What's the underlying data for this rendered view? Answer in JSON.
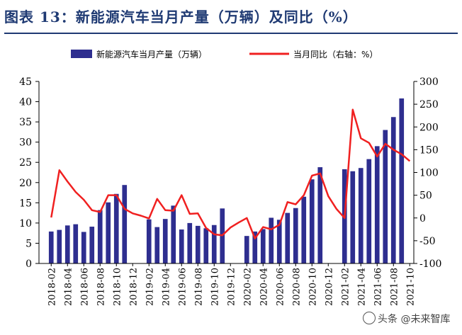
{
  "header": {
    "title": "图表 13：新能源汽车当月产量（万辆）及同比（%）"
  },
  "watermark": {
    "text": "头条 @未来智库"
  },
  "chart_data": {
    "type": "bar+line",
    "title": "新能源汽车当月产量（万辆）及同比（%）",
    "legend": {
      "position": "top",
      "bar_label": "新能源汽车当月产量（万辆）",
      "line_label": "当月同比（右轴：%）"
    },
    "colors": {
      "bar": "#2e2e8f",
      "line": "#f02020",
      "axis": "#000000",
      "title": "#1f3a73"
    },
    "left_axis": {
      "min": 0,
      "max": 45,
      "step": 5,
      "ticks": [
        "0",
        "5",
        "10",
        "15",
        "20",
        "25",
        "30",
        "35",
        "40",
        "45"
      ]
    },
    "right_axis": {
      "min": -100,
      "max": 300,
      "step": 50,
      "ticks": [
        "-100",
        "-50",
        "0",
        "50",
        "100",
        "150",
        "200",
        "250",
        "300"
      ]
    },
    "x_tick_labels": [
      "2018-02",
      "2018-04",
      "2018-06",
      "2018-08",
      "2018-10",
      "2018-12",
      "2019-02",
      "2019-04",
      "2019-06",
      "2019-08",
      "2019-10",
      "2019-12",
      "2020-02",
      "2020-04",
      "2020-06",
      "2020-08",
      "2020-10",
      "2020-12",
      "2021-02",
      "2021-04",
      "2021-06",
      "2021-08",
      "2021-10"
    ],
    "months": [
      "2018-01",
      "2018-02",
      "2018-03",
      "2018-04",
      "2018-05",
      "2018-06",
      "2018-07",
      "2018-08",
      "2018-09",
      "2018-10",
      "2018-11",
      "2018-12",
      "2019-01",
      "2019-02",
      "2019-03",
      "2019-04",
      "2019-05",
      "2019-06",
      "2019-07",
      "2019-08",
      "2019-09",
      "2019-10",
      "2019-11",
      "2019-12",
      "2020-01",
      "2020-02",
      "2020-03",
      "2020-04",
      "2020-05",
      "2020-06",
      "2020-07",
      "2020-08",
      "2020-09",
      "2020-10",
      "2020-11",
      "2020-12",
      "2021-01",
      "2021-02",
      "2021-03",
      "2021-04",
      "2021-05",
      "2021-06",
      "2021-07",
      "2021-08",
      "2021-09",
      "2021-10"
    ],
    "production": [
      null,
      7.9,
      8.3,
      9.4,
      9.7,
      7.8,
      9.1,
      13.2,
      15.1,
      17.2,
      19.4,
      null,
      null,
      10.9,
      9.0,
      11.0,
      14.3,
      8.4,
      10.0,
      9.3,
      8.7,
      9.5,
      13.6,
      null,
      null,
      6.8,
      7.9,
      8.5,
      11.3,
      10.8,
      12.5,
      13.7,
      16.5,
      20.8,
      23.8,
      null,
      null,
      23.3,
      22.8,
      23.6,
      25.8,
      29.0,
      33.0,
      36.2,
      40.8,
      null
    ],
    "yoy_pct": [
      null,
      1,
      105,
      80,
      57,
      40,
      17,
      13,
      50,
      50,
      20,
      10,
      5,
      -1,
      42,
      17,
      16,
      50,
      9,
      10,
      -22,
      -36,
      -38,
      -21,
      -10,
      0,
      -45,
      -20,
      -25,
      -15,
      35,
      30,
      50,
      93,
      98,
      48,
      20,
      0,
      238,
      175,
      165,
      135,
      163,
      150,
      140,
      125
    ]
  }
}
